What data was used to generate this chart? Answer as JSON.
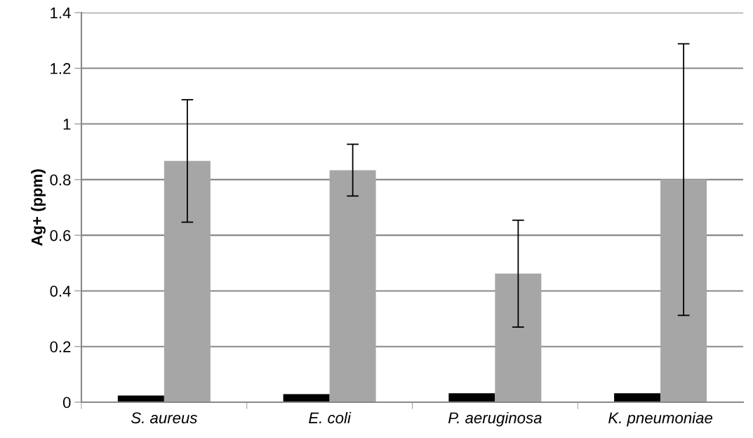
{
  "chart_data": {
    "type": "bar",
    "ylabel": "Ag+ (ppm)",
    "categories": [
      "S. aureus",
      "E. coli",
      "P. aeruginosa",
      "K. pneumoniae"
    ],
    "series": [
      {
        "color": "#000000",
        "values": [
          0.024,
          0.029,
          0.032,
          0.032
        ]
      },
      {
        "color": "#a6a6a6",
        "values": [
          0.867,
          0.834,
          0.462,
          0.8
        ],
        "errors": [
          0.22,
          0.093,
          0.192,
          0.488
        ]
      }
    ],
    "ylim": [
      0,
      1.4
    ],
    "yticks": [
      0,
      0.2,
      0.4,
      0.6,
      0.8,
      1,
      1.2,
      1.4
    ],
    "grid": "y"
  }
}
